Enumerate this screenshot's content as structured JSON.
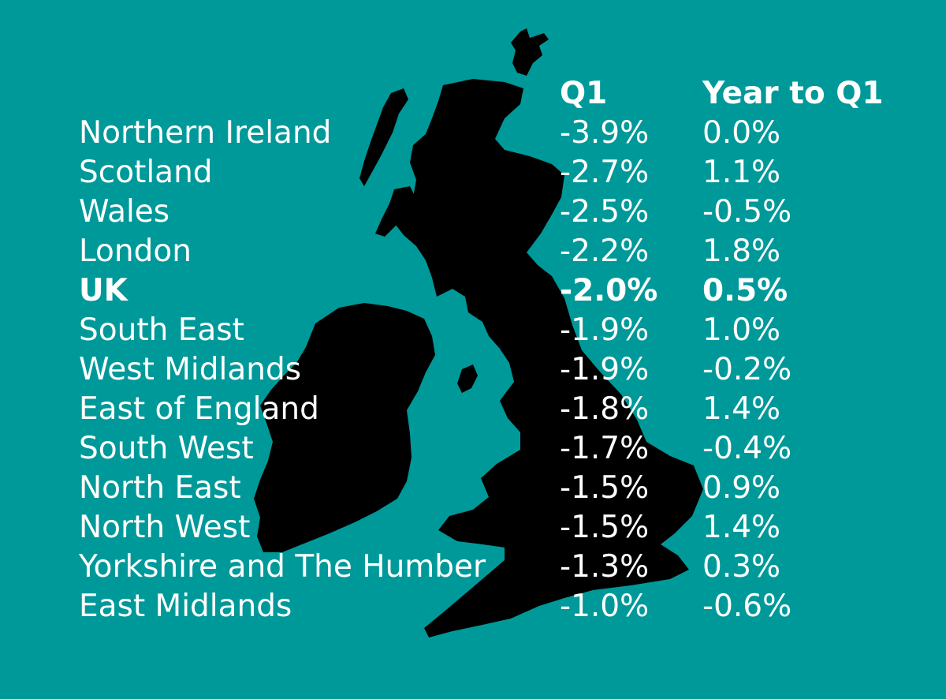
{
  "headers": {
    "q1": "Q1",
    "year": "Year to Q1"
  },
  "rows": [
    {
      "region": "Northern Ireland",
      "q1": "-3.9%",
      "year": "0.0%"
    },
    {
      "region": "Scotland",
      "q1": "-2.7%",
      "year": "1.1%"
    },
    {
      "region": "Wales",
      "q1": "-2.5%",
      "year": "-0.5%"
    },
    {
      "region": "London",
      "q1": "-2.2%",
      "year": "1.8%"
    },
    {
      "region": "UK",
      "q1": "-2.0%",
      "year": "0.5%"
    },
    {
      "region": "South East",
      "q1": "-1.9%",
      "year": "1.0%"
    },
    {
      "region": "West Midlands",
      "q1": "-1.9%",
      "year": "-0.2%"
    },
    {
      "region": "East of England",
      "q1": "-1.8%",
      "year": "1.4%"
    },
    {
      "region": "South West",
      "q1": "-1.7%",
      "year": "-0.4%"
    },
    {
      "region": "North East",
      "q1": "-1.5%",
      "year": "0.9%"
    },
    {
      "region": "North West",
      "q1": "-1.5%",
      "year": "1.4%"
    },
    {
      "region": "Yorkshire and The Humber",
      "q1": "-1.3%",
      "year": "0.3%"
    },
    {
      "region": "East Midlands",
      "q1": "-1.0%",
      "year": "-0.6%"
    }
  ],
  "colors": {
    "background": "#009999",
    "map": "#000000",
    "text": "#ffffff"
  }
}
